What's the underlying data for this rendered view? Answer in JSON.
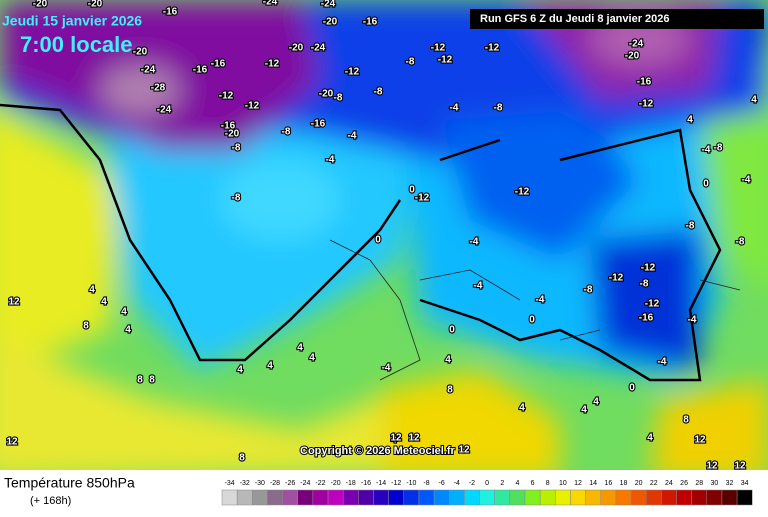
{
  "header": {
    "date": "Jeudi 15 janvier 2026",
    "time": "7:00 locale",
    "run": "Run GFS 6 Z du Jeudi 8 janvier 2026"
  },
  "copyright": "Copyright © 2026 Meteociel.fr",
  "footer": {
    "title": "Température 850hPa",
    "subtitle": "(+ 168h)"
  },
  "colorbar": {
    "values": [
      -34,
      -32,
      -30,
      -28,
      -26,
      -24,
      -22,
      -20,
      -18,
      -16,
      -14,
      -12,
      -10,
      -8,
      -6,
      -4,
      -2,
      0,
      2,
      4,
      6,
      8,
      10,
      12,
      14,
      16,
      18,
      20,
      22,
      24,
      26,
      28,
      30,
      32,
      34
    ],
    "colors": [
      "#d8d8d8",
      "#b8b8b8",
      "#989898",
      "#8c6a8c",
      "#a050a0",
      "#7a007a",
      "#a000a0",
      "#c000c0",
      "#7800b0",
      "#5000a8",
      "#2800c0",
      "#0000d0",
      "#0030e8",
      "#0058ff",
      "#0088ff",
      "#00b0ff",
      "#00d8ff",
      "#20f0e0",
      "#30e8a0",
      "#50e060",
      "#80f020",
      "#b8f000",
      "#e8f000",
      "#f8d800",
      "#f8b800",
      "#f89800",
      "#f87800",
      "#f05800",
      "#e03800",
      "#d01800",
      "#c00000",
      "#a00000",
      "#800000",
      "#580000",
      "#000000"
    ]
  },
  "contour_labels": [
    -20,
    -20,
    -16,
    -24,
    -24,
    -20,
    -16,
    -20,
    -24,
    -16,
    -16,
    -12,
    -20,
    -24,
    -12,
    -8,
    -12,
    -12,
    -12,
    -24,
    -20,
    -16,
    -12,
    -28,
    -24,
    -12,
    -12,
    -20,
    -8,
    -8,
    -16,
    -20,
    -8,
    -8,
    -16,
    -4,
    -4,
    -8,
    -4,
    -8,
    -12,
    0,
    -12,
    0,
    -4,
    -8,
    -12,
    -12,
    -8,
    -4,
    -4,
    -8,
    -12,
    -16,
    -4,
    0,
    0,
    -4,
    0,
    4,
    4,
    4,
    4,
    4,
    4,
    4,
    8,
    4,
    12,
    8,
    8,
    -4,
    4,
    4,
    4,
    4,
    4,
    8,
    12,
    8,
    4,
    12,
    12,
    12,
    8,
    12,
    12,
    12,
    4,
    4,
    -4,
    0,
    -4,
    -8,
    -8
  ]
}
